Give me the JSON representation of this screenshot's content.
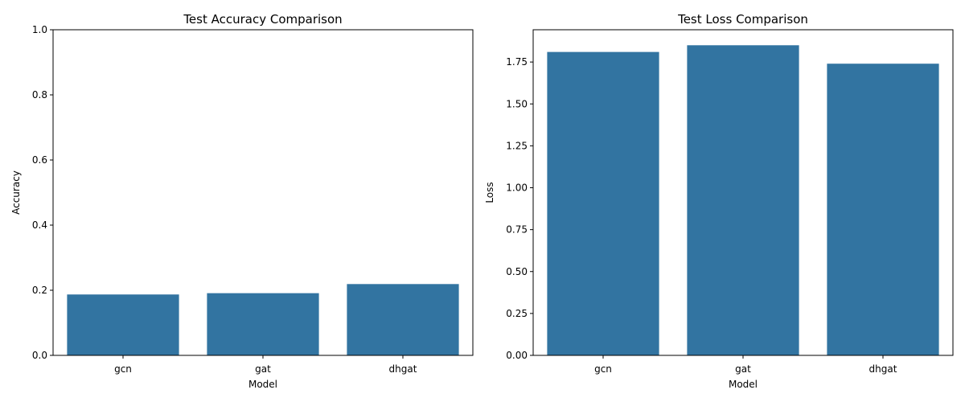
{
  "chart_data": [
    {
      "type": "bar",
      "title": "Test Accuracy Comparison",
      "xlabel": "Model",
      "ylabel": "Accuracy",
      "categories": [
        "gcn",
        "gat",
        "dhgat"
      ],
      "values": [
        0.187,
        0.191,
        0.219
      ],
      "ylim": [
        0,
        1.0
      ],
      "yticks": [
        "0.0",
        "0.2",
        "0.4",
        "0.6",
        "0.8",
        "1.0"
      ],
      "bar_color": "#3274a1",
      "grid": false
    },
    {
      "type": "bar",
      "title": "Test Loss Comparison",
      "xlabel": "Model",
      "ylabel": "Loss",
      "categories": [
        "gcn",
        "gat",
        "dhgat"
      ],
      "values": [
        1.81,
        1.85,
        1.74
      ],
      "ylim": [
        0,
        1.9425
      ],
      "yticks": [
        "0.00",
        "0.25",
        "0.50",
        "0.75",
        "1.00",
        "1.25",
        "1.50",
        "1.75"
      ],
      "bar_color": "#3274a1",
      "grid": false
    }
  ]
}
